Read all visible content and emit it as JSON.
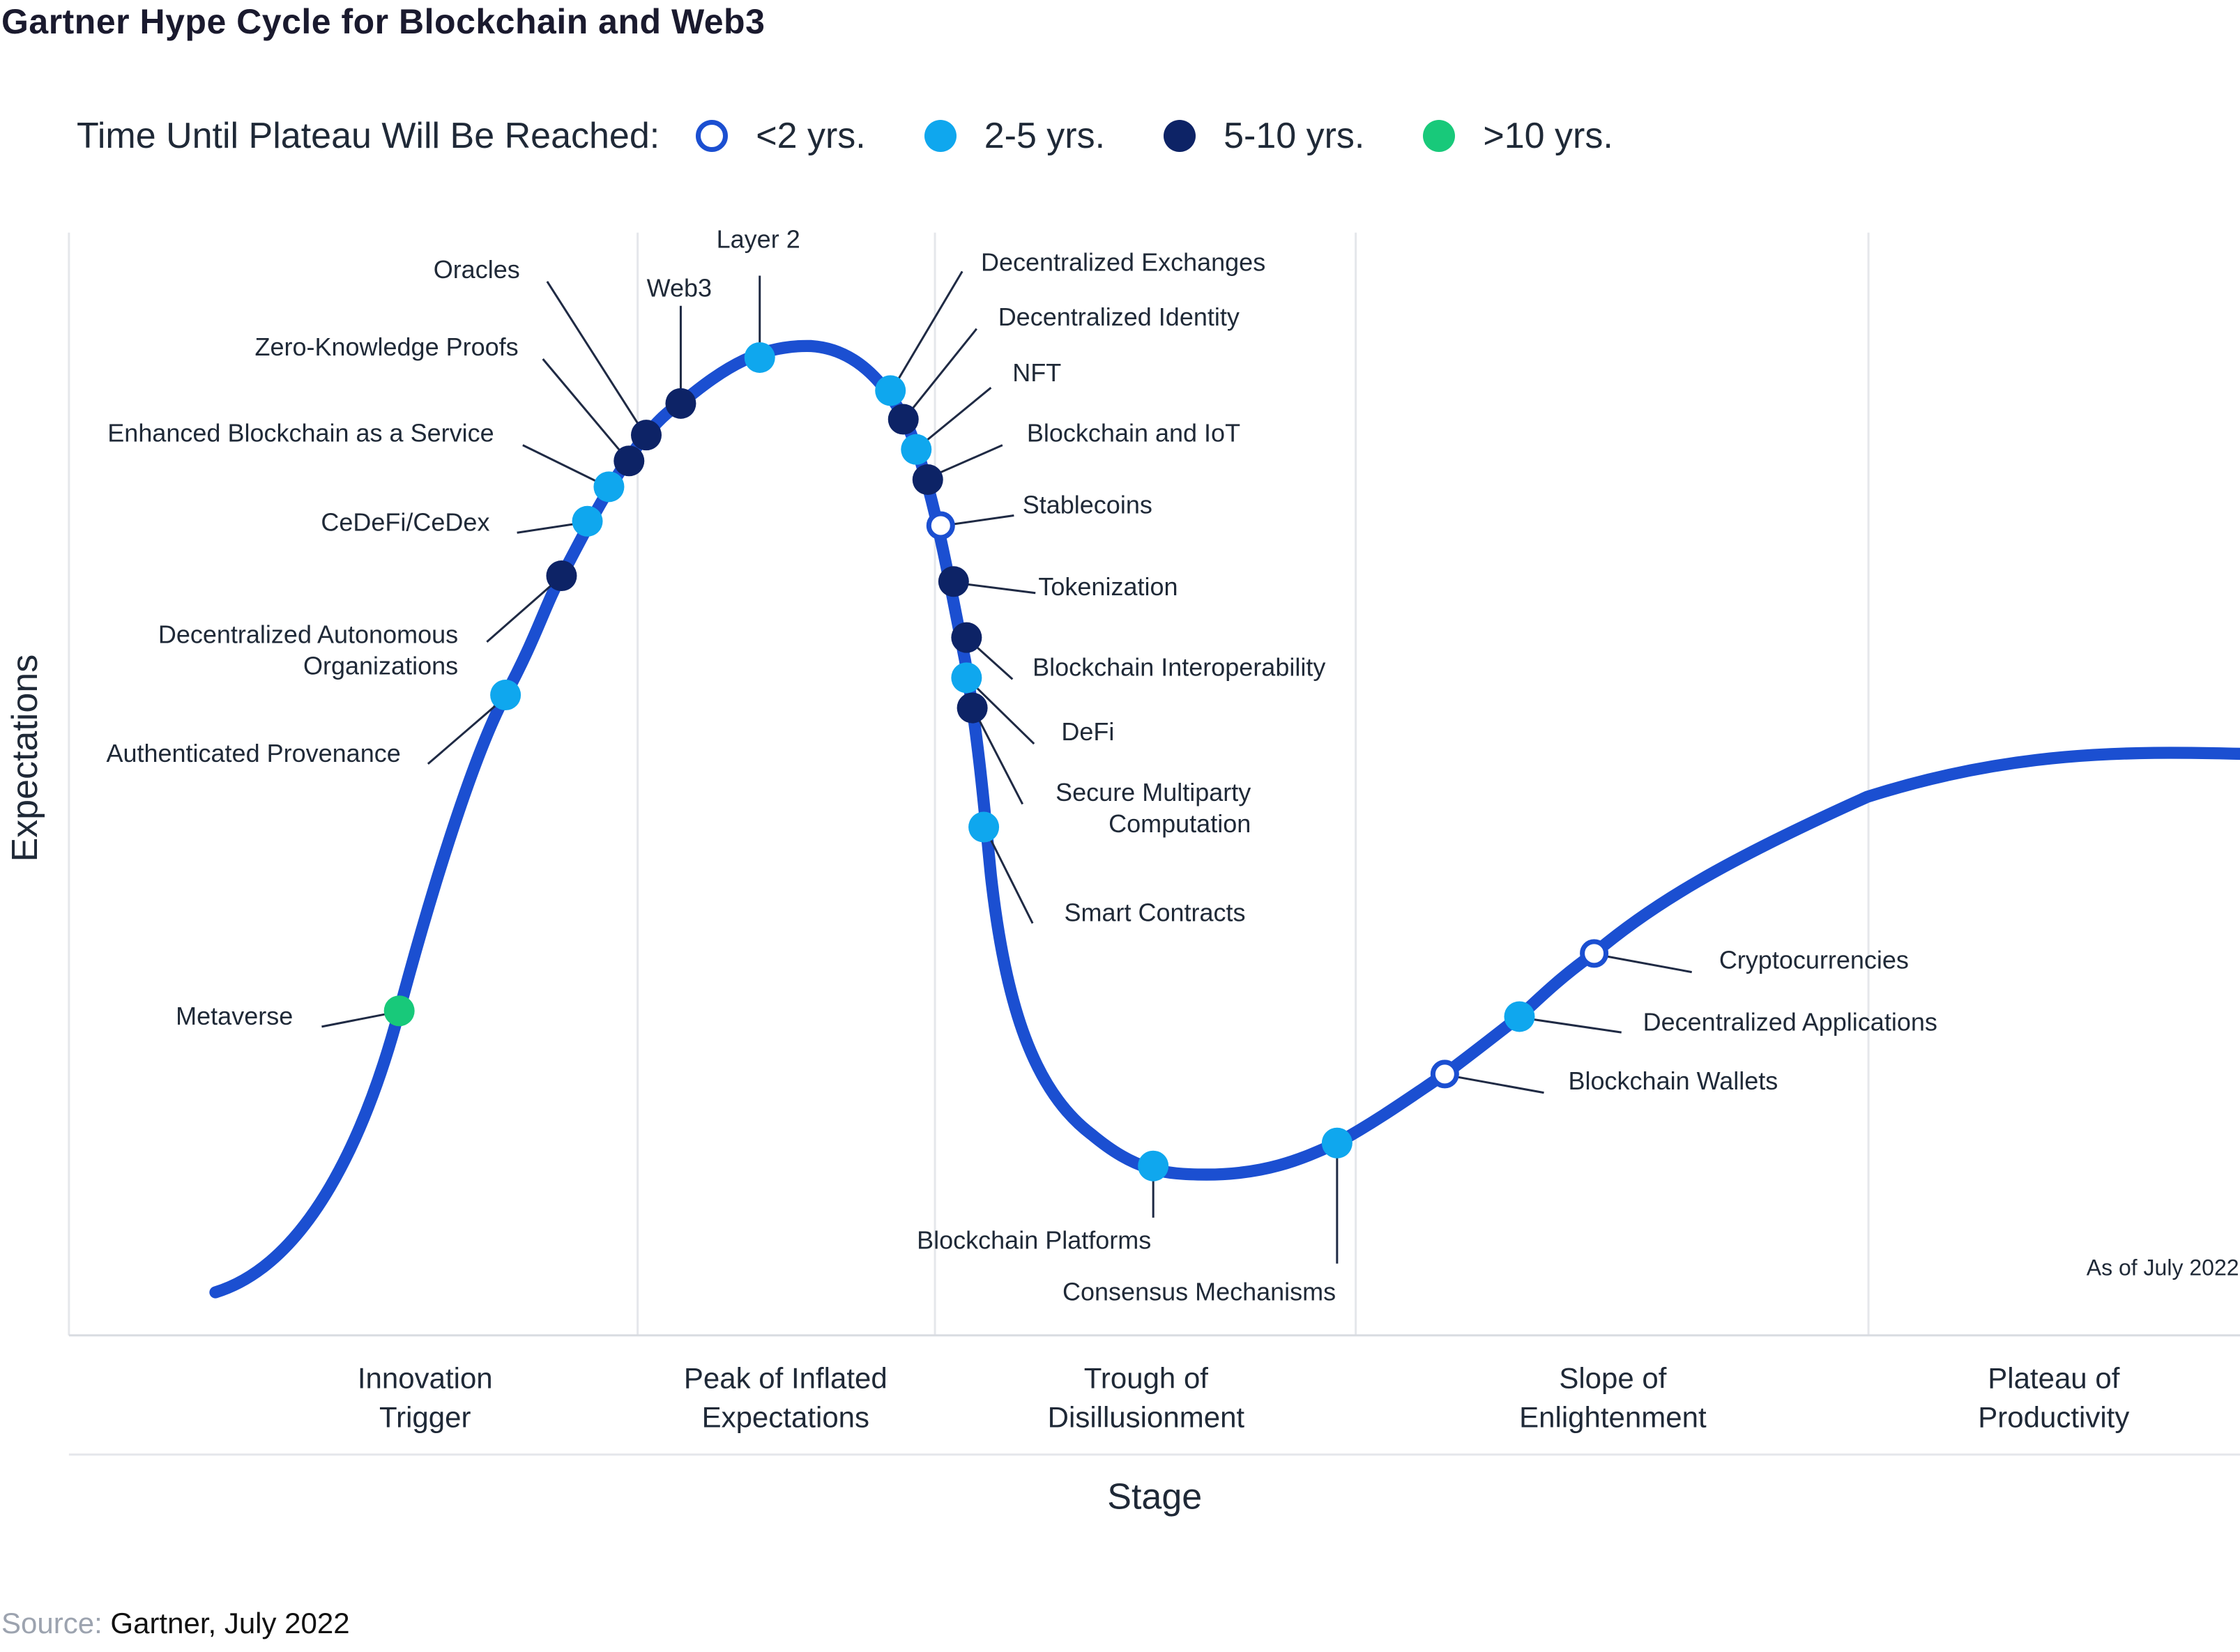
{
  "colors": {
    "curve": "#1b4fd1",
    "lt2": "#1b4fd1",
    "y2_5": "#0fa7ee",
    "y5_10": "#0d2366",
    "gt10": "#18c97a",
    "grid": "#e5e7eb",
    "leader": "#1f2a44"
  },
  "chart_data": {
    "type": "hype-cycle",
    "title": "Gartner Hype Cycle for Blockchain and Web3",
    "xlabel": "Stage",
    "ylabel": "Expectations",
    "legend_title": "Time Until Plateau Will Be Reached:",
    "legend": [
      {
        "key": "lt2",
        "label": "<2 yrs."
      },
      {
        "key": "y2_5",
        "label": "2-5 yrs."
      },
      {
        "key": "y5_10",
        "label": "5-10 yrs."
      },
      {
        "key": "gt10",
        "label": ">10 yrs."
      }
    ],
    "stages": [
      {
        "name": "Innovation Trigger",
        "lines": [
          "Innovation",
          "Trigger"
        ]
      },
      {
        "name": "Peak of Inflated Expectations",
        "lines": [
          "Peak of Inflated",
          "Expectations"
        ]
      },
      {
        "name": "Trough of Disillusionment",
        "lines": [
          "Trough of",
          "Disillusionment"
        ]
      },
      {
        "name": "Slope of Enlightenment",
        "lines": [
          "Slope of",
          "Enlightenment"
        ]
      },
      {
        "name": "Plateau of Productivity",
        "lines": [
          "Plateau of",
          "Productivity"
        ]
      }
    ],
    "technologies": [
      {
        "name": "Metaverse",
        "category": "gt10"
      },
      {
        "name": "Authenticated Provenance",
        "category": "y2_5"
      },
      {
        "name": "Decentralized Autonomous Organizations",
        "category": "y5_10"
      },
      {
        "name": "CeDeFi/CeDex",
        "category": "y2_5"
      },
      {
        "name": "Enhanced Blockchain as a Service",
        "category": "y2_5"
      },
      {
        "name": "Zero-Knowledge Proofs",
        "category": "y5_10"
      },
      {
        "name": "Oracles",
        "category": "y5_10"
      },
      {
        "name": "Web3",
        "category": "y5_10"
      },
      {
        "name": "Layer 2",
        "category": "y2_5"
      },
      {
        "name": "Decentralized Exchanges",
        "category": "y2_5"
      },
      {
        "name": "Decentralized Identity",
        "category": "y5_10"
      },
      {
        "name": "NFT",
        "category": "y2_5"
      },
      {
        "name": "Blockchain and IoT",
        "category": "y5_10"
      },
      {
        "name": "Stablecoins",
        "category": "lt2"
      },
      {
        "name": "Tokenization",
        "category": "y5_10"
      },
      {
        "name": "Blockchain Interoperability",
        "category": "y5_10"
      },
      {
        "name": "DeFi",
        "category": "y2_5"
      },
      {
        "name": "Secure Multiparty Computation",
        "category": "y5_10"
      },
      {
        "name": "Smart Contracts",
        "category": "y2_5"
      },
      {
        "name": "Blockchain Platforms",
        "category": "y2_5"
      },
      {
        "name": "Consensus Mechanisms",
        "category": "y2_5"
      },
      {
        "name": "Blockchain Wallets",
        "category": "lt2"
      },
      {
        "name": "Decentralized Applications",
        "category": "y2_5"
      },
      {
        "name": "Cryptocurrencies",
        "category": "lt2"
      }
    ],
    "annotation": "As of July 2022"
  },
  "source": {
    "label": "Source:",
    "text": " Gartner, July 2022"
  }
}
